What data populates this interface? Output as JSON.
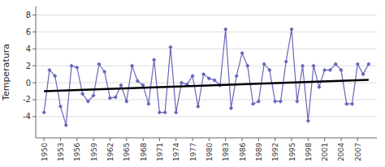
{
  "chart_data": {
    "type": "line",
    "y_label": "Temperatura",
    "x": [
      1950,
      1951,
      1952,
      1953,
      1954,
      1955,
      1956,
      1957,
      1958,
      1959,
      1960,
      1961,
      1962,
      1963,
      1964,
      1965,
      1966,
      1967,
      1968,
      1969,
      1970,
      1971,
      1972,
      1973,
      1974,
      1975,
      1976,
      1977,
      1978,
      1979,
      1980,
      1981,
      1982,
      1983,
      1984,
      1985,
      1986,
      1987,
      1988,
      1989,
      1990,
      1991,
      1992,
      1993,
      1994,
      1995,
      1996,
      1997,
      1998,
      1999,
      2000,
      2001,
      2002,
      2003,
      2004,
      2005,
      2006,
      2007,
      2008,
      2009
    ],
    "series": [
      {
        "color": "#6666bb",
        "marker": "diamond",
        "values": [
          -3.5,
          1.5,
          0.8,
          -2.8,
          -5.0,
          2.0,
          1.8,
          -1.3,
          -2.2,
          -1.5,
          2.2,
          1.3,
          -1.8,
          -1.7,
          -0.3,
          -2.2,
          2.0,
          0.2,
          -0.3,
          -2.5,
          2.7,
          -3.5,
          -3.5,
          4.2,
          -3.5,
          0.0,
          -0.2,
          0.8,
          -2.8,
          1.0,
          0.5,
          0.3,
          -0.3,
          6.3,
          -3.0,
          0.8,
          3.5,
          2.0,
          -2.5,
          -2.2,
          2.2,
          1.5,
          -2.2,
          -2.2,
          2.5,
          6.3,
          -2.2,
          2.0,
          -4.5,
          2.0,
          -0.5,
          1.5,
          1.5,
          2.2,
          1.5,
          -2.5,
          -2.5,
          2.2,
          1.0,
          2.2
        ]
      },
      {
        "color": "#000000",
        "x": [
          1950,
          2009
        ],
        "values": [
          -1.0,
          0.35
        ]
      }
    ],
    "xlim": [
      1948.5,
      2010.5
    ],
    "xticks": [
      1950,
      1953,
      1956,
      1959,
      1962,
      1965,
      1968,
      1971,
      1974,
      1977,
      1980,
      1983,
      1986,
      1989,
      1992,
      1995,
      1998,
      2001,
      2004,
      2007
    ],
    "ylim": [
      -6.5,
      9.0
    ],
    "yticks": [
      -4,
      -2,
      0,
      2,
      4,
      6,
      8
    ],
    "grid": true
  }
}
